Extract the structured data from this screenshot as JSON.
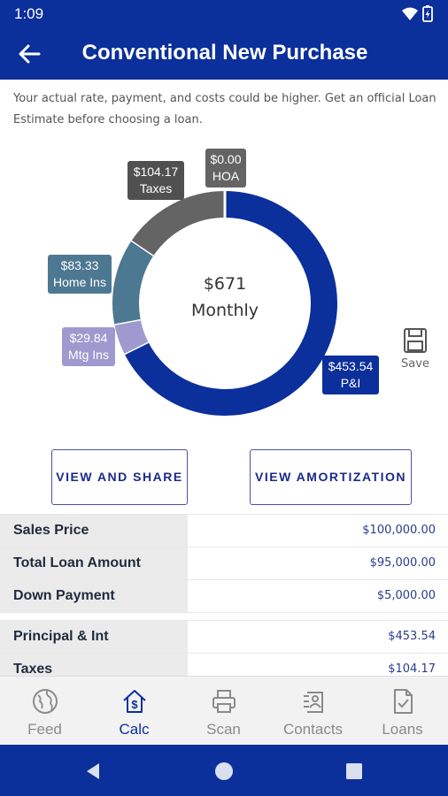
{
  "status_bar": {
    "time": "1:09"
  },
  "header": {
    "title": "Conventional New Purchase"
  },
  "disclaimer": "Your actual rate, payment, and costs could be higher. Get an official Loan Estimate before choosing a loan.",
  "chart_data": {
    "type": "pie",
    "center_amount": "$671",
    "center_label": "Monthly",
    "slices": [
      {
        "name": "P&I",
        "label": "$453.54",
        "value": 453.54,
        "color": "#0b2f9b"
      },
      {
        "name": "Mtg Ins",
        "label": "$29.84",
        "value": 29.84,
        "color": "#9e9acf"
      },
      {
        "name": "Home Ins",
        "label": "$83.33",
        "value": 83.33,
        "color": "#4d7891"
      },
      {
        "name": "Taxes",
        "label": "$104.17",
        "value": 104.17,
        "color": "#646464"
      },
      {
        "name": "HOA",
        "label": "$0.00",
        "value": 0.0,
        "color": "#646464"
      }
    ]
  },
  "save": {
    "label": "Save"
  },
  "buttons": {
    "share": "VIEW AND SHARE",
    "amortization": "VIEW AMORTIZATION"
  },
  "loan_summary": [
    {
      "label": "Sales Price",
      "value": "$100,000.00"
    },
    {
      "label": "Total Loan Amount",
      "value": "$95,000.00"
    },
    {
      "label": "Down Payment",
      "value": "$5,000.00"
    }
  ],
  "payment_breakdown": [
    {
      "label": "Principal & Int",
      "value": "$453.54"
    },
    {
      "label": "Taxes",
      "value": "$104.17"
    }
  ],
  "bottom_nav": {
    "items": [
      {
        "label": "Feed",
        "icon": "globe-icon",
        "active": false
      },
      {
        "label": "Calc",
        "icon": "house-dollar-icon",
        "active": true
      },
      {
        "label": "Scan",
        "icon": "printer-icon",
        "active": false
      },
      {
        "label": "Contacts",
        "icon": "contacts-icon",
        "active": false
      },
      {
        "label": "Loans",
        "icon": "document-check-icon",
        "active": false
      }
    ]
  },
  "colors": {
    "primary": "#0b2f9b",
    "row_label_bg": "#ebebeb",
    "value_text": "#2b3c8f",
    "nav_inactive": "#8a8a8a"
  }
}
